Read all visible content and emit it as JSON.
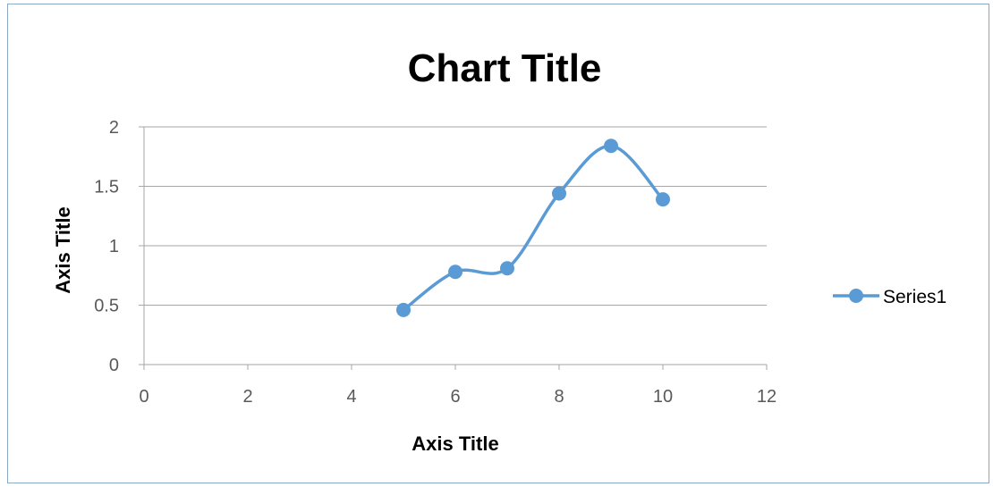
{
  "chart_data": {
    "type": "line",
    "title": "Chart Title",
    "xlabel": "Axis Title",
    "ylabel": "Axis Title",
    "xlim": [
      0,
      12
    ],
    "ylim": [
      0,
      2
    ],
    "xticks": [
      0,
      2,
      4,
      6,
      8,
      10,
      12
    ],
    "yticks": [
      0,
      0.5,
      1,
      1.5,
      2
    ],
    "grid": "horizontal",
    "smooth": true,
    "legend_position": "right",
    "series": [
      {
        "name": "Series1",
        "color": "#5b9bd5",
        "x": [
          5,
          6,
          7,
          8,
          9,
          10
        ],
        "y": [
          0.46,
          0.78,
          0.81,
          1.44,
          1.84,
          1.39
        ]
      }
    ]
  }
}
